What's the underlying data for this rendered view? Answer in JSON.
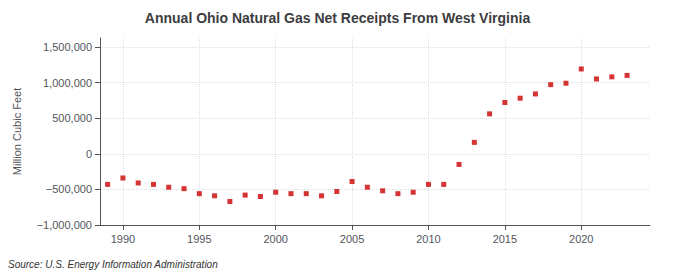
{
  "chart_data": {
    "type": "scatter",
    "title": "Annual Ohio Natural Gas Net Receipts From West Virginia",
    "ylabel": "Million Cubic Feet",
    "annotation": "Source: U.S. Energy Information Administration",
    "color": "#cc0000",
    "marker": "square",
    "x": [
      1989,
      1990,
      1991,
      1992,
      1993,
      1994,
      1995,
      1996,
      1997,
      1998,
      1999,
      2000,
      2001,
      2002,
      2003,
      2004,
      2005,
      2006,
      2007,
      2008,
      2009,
      2010,
      2011,
      2012,
      2013,
      2014,
      2015,
      2016,
      2017,
      2018,
      2019,
      2020,
      2021,
      2022,
      2023
    ],
    "values": [
      -430000,
      -340000,
      -410000,
      -430000,
      -470000,
      -490000,
      -560000,
      -590000,
      -670000,
      -580000,
      -600000,
      -540000,
      -560000,
      -560000,
      -590000,
      -530000,
      -390000,
      -470000,
      -520000,
      -560000,
      -540000,
      -430000,
      -430000,
      -150000,
      160000,
      560000,
      720000,
      780000,
      840000,
      970000,
      990000,
      1190000,
      1050000,
      1080000,
      1100000
    ],
    "xlim": [
      1988.5,
      2024.5
    ],
    "xticks": [
      1990,
      1995,
      2000,
      2005,
      2010,
      2015,
      2020
    ],
    "ylim": [
      -1000000,
      1625000
    ],
    "yticks": [
      {
        "value": -1000000,
        "label": "−1,000,000"
      },
      {
        "value": -500000,
        "label": "−500,000"
      },
      0,
      {
        "value": 500000,
        "label": "500,000"
      },
      {
        "value": 1000000,
        "label": "1,000,000"
      },
      {
        "value": 1500000,
        "label": "1,500,000"
      }
    ],
    "grid": true
  }
}
